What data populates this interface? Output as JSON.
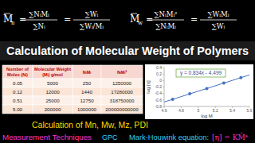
{
  "formulas": [
    {
      "symbol": "M",
      "subscript": "n",
      "relation": "=",
      "fractions": [
        {
          "numerator": "∑NᵢMᵢ",
          "denominator": "∑Nᵢ"
        },
        {
          "numerator": "∑Wᵢ",
          "denominator": "∑Wᵢ/Mᵢ"
        }
      ]
    },
    {
      "symbol": "M",
      "subscript": "w",
      "relation": "=",
      "fractions": [
        {
          "numerator": "∑NᵢMᵢ²",
          "denominator": "∑NᵢMᵢ"
        },
        {
          "numerator": "∑WᵢMᵢ",
          "denominator": "∑Wᵢ"
        }
      ]
    }
  ],
  "title": "Calculation of Molecular Weight of Polymers",
  "table": {
    "header": [
      [
        "Number of",
        "Moles (Nᵢ)"
      ],
      [
        "Molecular Weight",
        "(Mᵢ) g/mol"
      ],
      [
        "NᵢMᵢ"
      ],
      [
        "NᵢMᵢ²"
      ]
    ],
    "rows": [
      [
        "0.05",
        "5000",
        "250",
        "1250000"
      ],
      [
        "0.12",
        "12000",
        "1440",
        "17280000"
      ],
      [
        "0.51",
        "25000",
        "12750",
        "318750000"
      ],
      [
        "5.00",
        "200000",
        "1000000",
        "200000000000"
      ]
    ]
  },
  "chart_data": {
    "type": "scatter",
    "annotation": "y = 0.834x - 4.499",
    "x_label": "log M",
    "y_label": "log [η]",
    "xlim": [
      4.6,
      5.6
    ],
    "xticks": [
      4.6,
      4.8,
      5,
      5.2,
      5.4,
      5.6
    ],
    "ylim": [
      -0.8,
      0.4
    ],
    "yticks": [
      -0.8,
      -0.6,
      -0.4,
      -0.2,
      0,
      0.2,
      0.4
    ],
    "grid": false,
    "series": [
      {
        "type": "scatter",
        "marker": "circle",
        "color": "#4472c4",
        "x": [
          4.7,
          4.9,
          5.1,
          5.3,
          5.5
        ],
        "values": [
          -0.58,
          -0.41,
          -0.25,
          -0.08,
          0.09
        ]
      },
      {
        "type": "line",
        "line_style": "solid",
        "color": "#4472c4",
        "x": [
          4.6,
          5.6
        ],
        "values": [
          -0.663,
          0.171
        ]
      }
    ]
  },
  "subtitle": "Calculation of Mn, Mw, Mz, PDI",
  "footer": {
    "measurement": "Measurement Techniques",
    "gpc": "GPC",
    "mark_houwink": "Mark-Houwink equation:",
    "equation": "[η] = KM̄ᵃ"
  }
}
